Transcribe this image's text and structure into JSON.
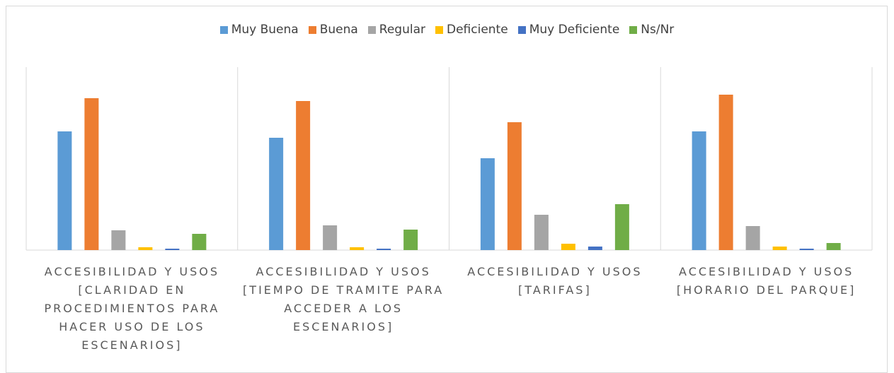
{
  "chart_data": {
    "type": "bar",
    "categories": [
      "ACCESIBILIDAD Y USOS [CLARIDAD EN PROCEDIMIENTOS PARA HACER USO DE LOS ESCENARIOS]",
      "ACCESIBILIDAD Y USOS [TIEMPO DE TRAMITE PARA ACCEDER A LOS ESCENARIOS]",
      "ACCESIBILIDAD Y USOS [TARIFAS]",
      "ACCESIBILIDAD Y USOS [HORARIO DEL PARQUE]"
    ],
    "series": [
      {
        "name": "Muy Buena",
        "color": "#5b9bd5",
        "values": [
          168,
          159,
          130,
          168
        ]
      },
      {
        "name": "Buena",
        "color": "#ed7d31",
        "values": [
          215,
          211,
          181,
          220
        ]
      },
      {
        "name": "Regular",
        "color": "#a5a5a5",
        "values": [
          28,
          35,
          50,
          34
        ]
      },
      {
        "name": "Deficiente",
        "color": "#ffc000",
        "values": [
          4,
          4,
          9,
          5
        ]
      },
      {
        "name": "Muy Deficiente",
        "color": "#4472c4",
        "values": [
          2,
          2,
          5,
          2
        ]
      },
      {
        "name": "Ns/Nr",
        "color": "#70ad47",
        "values": [
          23,
          29,
          65,
          10
        ]
      }
    ],
    "ylim": [
      0,
      259
    ],
    "legend": "top"
  }
}
